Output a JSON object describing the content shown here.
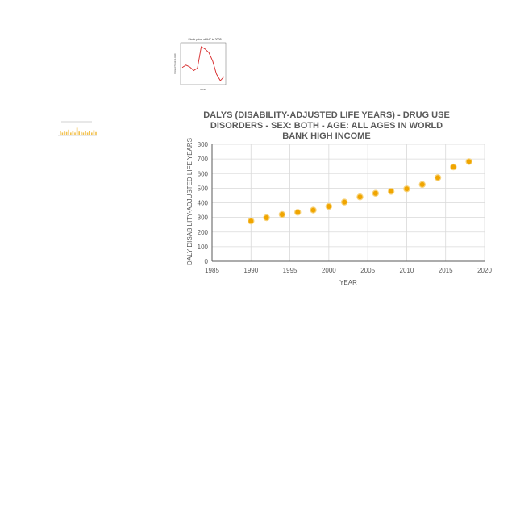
{
  "thumbnail_line": {
    "title": "Stock price of IHT in 2005",
    "ylabel": "Price of Stock in USD",
    "xlabel": "Month",
    "color": "#d62728"
  },
  "thumbnail_bar": {
    "color": "#f2c14e"
  },
  "chart_data": [
    {
      "type": "scatter",
      "title_lines": [
        "DALYS (DISABILITY-ADJUSTED LIFE YEARS) - DRUG USE",
        "DISORDERS - SEX: BOTH - AGE: ALL AGES IN WORLD",
        "BANK HIGH INCOME"
      ],
      "xlabel": "YEAR",
      "ylabel": "DALY DISABILITY-ADJUSTED LIFE YEARS",
      "xlim": [
        1985,
        2020
      ],
      "ylim": [
        0,
        800
      ],
      "xticks": [
        1985,
        1990,
        1995,
        2000,
        2005,
        2010,
        2015,
        2020
      ],
      "yticks": [
        0,
        100,
        200,
        300,
        400,
        500,
        600,
        700,
        800
      ],
      "grid": true,
      "marker_color": "#f0a500",
      "series": [
        {
          "x": [
            1990,
            1992,
            1994,
            1996,
            1998,
            2000,
            2002,
            2004,
            2006,
            2008,
            2010,
            2012,
            2014,
            2016,
            2018
          ],
          "values": [
            275,
            298,
            320,
            335,
            350,
            375,
            405,
            440,
            465,
            478,
            495,
            525,
            572,
            645,
            682
          ]
        }
      ]
    },
    {
      "type": "line",
      "title": "Stock price of IHT in 2005",
      "xlabel": "Month",
      "ylabel": "Price of Stock in USD",
      "series": [
        {
          "values": [
            4.1,
            4.5,
            4.2,
            3.6,
            4.0,
            7.6,
            7.2,
            6.6,
            5.2,
            3.0,
            1.9,
            2.6
          ]
        }
      ]
    }
  ]
}
